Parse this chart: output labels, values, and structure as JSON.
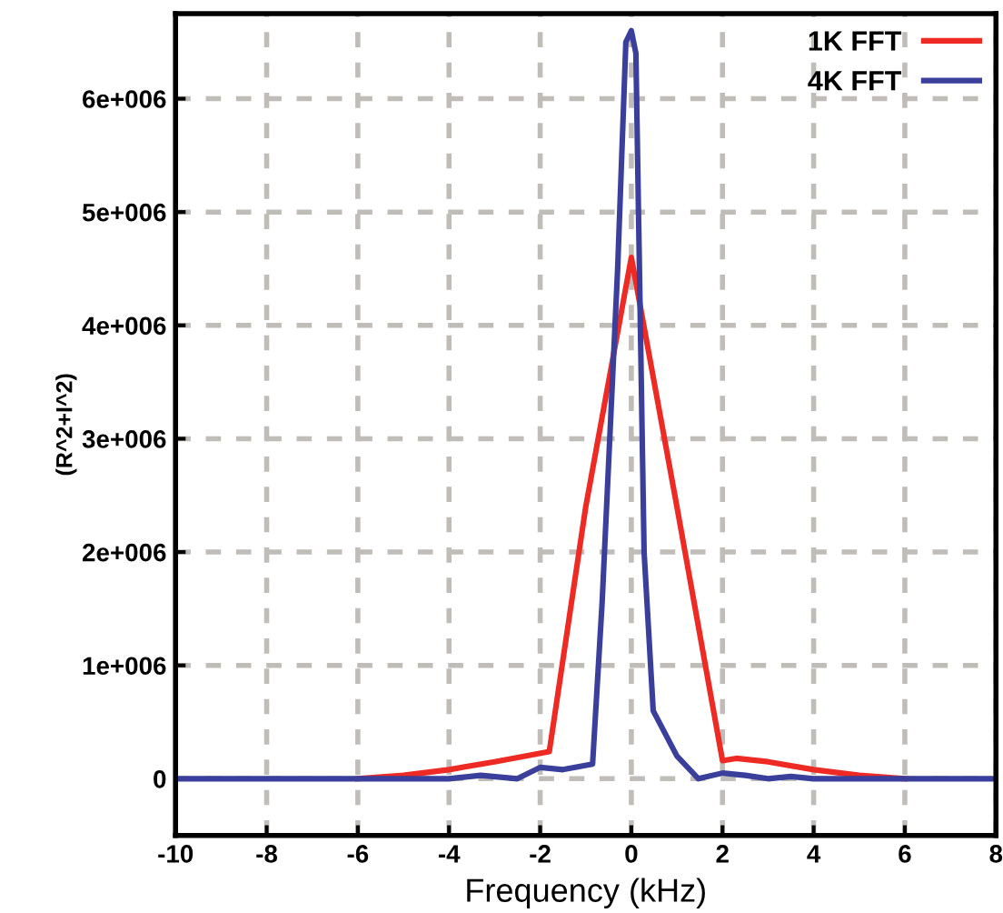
{
  "chart_data": {
    "type": "line",
    "xlabel": "Frequency (kHz)",
    "ylabel": "(R^2+I^2)",
    "xlim": [
      -10,
      8
    ],
    "xticks": [
      -10,
      -8,
      -6,
      -4,
      -2,
      0,
      2,
      4,
      6,
      8
    ],
    "ylim": [
      -500000,
      6750000
    ],
    "yticks": [
      0,
      {
        "value": 1000000,
        "label": "1e+006"
      },
      {
        "value": 2000000,
        "label": "2e+006"
      },
      {
        "value": 3000000,
        "label": "3e+006"
      },
      {
        "value": 4000000,
        "label": "4e+006"
      },
      {
        "value": 5000000,
        "label": "5e+006"
      },
      {
        "value": 6000000,
        "label": "6e+006"
      }
    ],
    "grid": true,
    "legend": "top right",
    "marker": "none",
    "line_style": "solid",
    "series": [
      {
        "name": "1K FFT",
        "color": "#ee2a24",
        "x": [
          -6,
          -5,
          -4,
          -3,
          -1.8,
          -1,
          0,
          1,
          2,
          2.3,
          3,
          4,
          5,
          6
        ],
        "values": [
          0,
          30000,
          80000,
          150000,
          240000,
          2400000,
          4600000,
          2400000,
          160000,
          180000,
          150000,
          80000,
          30000,
          0
        ]
      },
      {
        "name": "4K FFT",
        "color": "#3a3f9c",
        "x": [
          -10,
          -4,
          -3.3,
          -2.5,
          -2,
          -1.5,
          -0.85,
          -0.64,
          -0.3,
          -0.12,
          0,
          0.1,
          0.28,
          0.48,
          1.0,
          1.47,
          2,
          2.5,
          3,
          3.5,
          4,
          8
        ],
        "values": [
          0,
          0,
          30000,
          0,
          100000,
          80000,
          130000,
          1560000,
          4500000,
          6500000,
          6600000,
          6400000,
          2000000,
          600000,
          200000,
          0,
          50000,
          30000,
          0,
          20000,
          0,
          0
        ]
      }
    ]
  }
}
